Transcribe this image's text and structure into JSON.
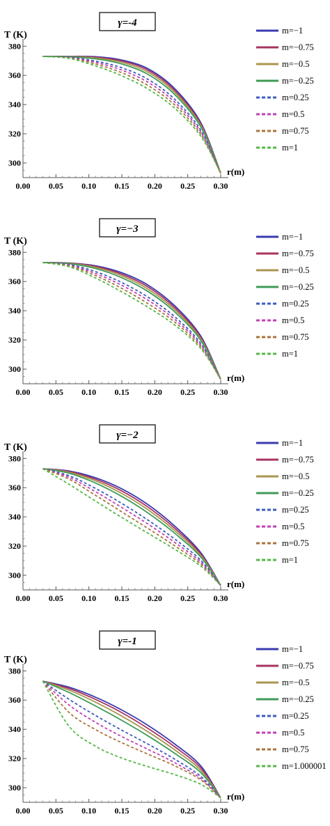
{
  "figure": {
    "colors": {
      "m=-1": "#3a3ab0",
      "m=-0.75": "#a8335f",
      "m=-0.5": "#a89650",
      "m=-0.25": "#3f9b57",
      "m=0.25": "#3b5bbf",
      "m=0.5": "#c040b8",
      "m=0.75": "#a8743a",
      "m=1": "#55b845"
    }
  },
  "chart_data": [
    {
      "type": "line",
      "title": "γ=-4",
      "xlabel": "r(m)",
      "ylabel": "T (K)",
      "xlim": [
        0.0,
        0.3
      ],
      "ylim": [
        290,
        380
      ],
      "xticks": [
        "0.00",
        "0.05",
        "0.10",
        "0.15",
        "0.20",
        "0.25",
        "0.30"
      ],
      "yticks": [
        "300",
        "320",
        "340",
        "360",
        "380"
      ],
      "legend_position": "right",
      "series": [
        {
          "name": "m=−1",
          "style": "solid",
          "color": "#3a3ab0",
          "x": [
            0.03,
            0.07,
            0.11,
            0.15,
            0.19,
            0.23,
            0.27,
            0.3
          ],
          "values": [
            373,
            373,
            372.8,
            370.5,
            364.5,
            351,
            327.5,
            293
          ]
        },
        {
          "name": "m=−0.75",
          "style": "solid",
          "color": "#a8335f",
          "x": [
            0.03,
            0.07,
            0.11,
            0.15,
            0.19,
            0.23,
            0.27,
            0.3
          ],
          "values": [
            373,
            372.9,
            372.4,
            369.8,
            363.4,
            349.8,
            326.5,
            293
          ]
        },
        {
          "name": "m=−0.5",
          "style": "solid",
          "color": "#a89650",
          "x": [
            0.03,
            0.07,
            0.11,
            0.15,
            0.19,
            0.23,
            0.27,
            0.3
          ],
          "values": [
            373,
            372.8,
            371.9,
            368.9,
            362.1,
            348.5,
            325.6,
            293
          ]
        },
        {
          "name": "m=−0.25",
          "style": "solid",
          "color": "#3f9b57",
          "x": [
            0.03,
            0.07,
            0.11,
            0.15,
            0.19,
            0.23,
            0.27,
            0.3
          ],
          "values": [
            373,
            372.7,
            371.3,
            367.8,
            360.6,
            347,
            324.6,
            293
          ]
        },
        {
          "name": "m=0.25",
          "style": "dashed",
          "color": "#3b5bbf",
          "x": [
            0.03,
            0.07,
            0.11,
            0.15,
            0.19,
            0.23,
            0.27,
            0.3
          ],
          "values": [
            373,
            372.4,
            369.8,
            365.2,
            357.2,
            343.7,
            322.3,
            293
          ]
        },
        {
          "name": "m=0.5",
          "style": "dashed",
          "color": "#c040b8",
          "x": [
            0.03,
            0.07,
            0.11,
            0.15,
            0.19,
            0.23,
            0.27,
            0.3
          ],
          "values": [
            373,
            372.2,
            368.9,
            363.6,
            355.2,
            341.8,
            321,
            293
          ]
        },
        {
          "name": "m=0.75",
          "style": "dashed",
          "color": "#a8743a",
          "x": [
            0.03,
            0.07,
            0.11,
            0.15,
            0.19,
            0.23,
            0.27,
            0.3
          ],
          "values": [
            373,
            371.9,
            367.8,
            361.8,
            353,
            339.8,
            319.6,
            293
          ]
        },
        {
          "name": "m=1",
          "style": "dashed",
          "color": "#55b845",
          "x": [
            0.03,
            0.07,
            0.11,
            0.15,
            0.19,
            0.23,
            0.27,
            0.3
          ],
          "values": [
            373,
            371.6,
            366.5,
            359.7,
            350.6,
            337.6,
            318.2,
            293
          ]
        }
      ]
    },
    {
      "type": "line",
      "title": "γ=−3",
      "xlabel": "r(m)",
      "ylabel": "T (K)",
      "xlim": [
        0.0,
        0.3
      ],
      "ylim": [
        290,
        380
      ],
      "xticks": [
        "0.00",
        "0.05",
        "0.10",
        "0.15",
        "0.20",
        "0.25",
        "0.30"
      ],
      "yticks": [
        "300",
        "320",
        "340",
        "360",
        "380"
      ],
      "legend_position": "right",
      "series": [
        {
          "name": "m=−1",
          "style": "solid",
          "color": "#3a3ab0",
          "x": [
            0.03,
            0.07,
            0.11,
            0.15,
            0.19,
            0.23,
            0.27,
            0.3
          ],
          "values": [
            373,
            372.7,
            370.8,
            366,
            357.5,
            343.5,
            322.5,
            293
          ]
        },
        {
          "name": "m=−0.75",
          "style": "solid",
          "color": "#a8335f",
          "x": [
            0.03,
            0.07,
            0.11,
            0.15,
            0.19,
            0.23,
            0.27,
            0.3
          ],
          "values": [
            373,
            372.6,
            370.3,
            365,
            356.2,
            342.2,
            321.6,
            293
          ]
        },
        {
          "name": "m=−0.5",
          "style": "solid",
          "color": "#a89650",
          "x": [
            0.03,
            0.07,
            0.11,
            0.15,
            0.19,
            0.23,
            0.27,
            0.3
          ],
          "values": [
            373,
            372.4,
            369.7,
            363.9,
            354.7,
            340.8,
            320.6,
            293
          ]
        },
        {
          "name": "m=−0.25",
          "style": "solid",
          "color": "#3f9b57",
          "x": [
            0.03,
            0.07,
            0.11,
            0.15,
            0.19,
            0.23,
            0.27,
            0.3
          ],
          "values": [
            373,
            372.2,
            368.9,
            362.6,
            353.1,
            339.3,
            319.6,
            293
          ]
        },
        {
          "name": "m=0.25",
          "style": "dashed",
          "color": "#3b5bbf",
          "x": [
            0.03,
            0.07,
            0.11,
            0.15,
            0.19,
            0.23,
            0.27,
            0.3
          ],
          "values": [
            373,
            371.6,
            366.8,
            359.3,
            349.2,
            336,
            317.5,
            293
          ]
        },
        {
          "name": "m=0.5",
          "style": "dashed",
          "color": "#c040b8",
          "x": [
            0.03,
            0.07,
            0.11,
            0.15,
            0.19,
            0.23,
            0.27,
            0.3
          ],
          "values": [
            373,
            371.2,
            365.5,
            357.4,
            347.1,
            334.2,
            316.4,
            293
          ]
        },
        {
          "name": "m=0.75",
          "style": "dashed",
          "color": "#a8743a",
          "x": [
            0.03,
            0.07,
            0.11,
            0.15,
            0.19,
            0.23,
            0.27,
            0.3
          ],
          "values": [
            373,
            370.7,
            364.1,
            355.3,
            344.8,
            332.3,
            315.2,
            293
          ]
        },
        {
          "name": "m=1",
          "style": "dashed",
          "color": "#55b845",
          "x": [
            0.03,
            0.07,
            0.11,
            0.15,
            0.19,
            0.23,
            0.27,
            0.3
          ],
          "values": [
            373,
            370.1,
            362.4,
            352.9,
            342.3,
            330.3,
            314,
            293
          ]
        }
      ]
    },
    {
      "type": "line",
      "title": "γ=−2",
      "xlabel": "r(m)",
      "ylabel": "T (K)",
      "xlim": [
        0.0,
        0.3
      ],
      "ylim": [
        290,
        380
      ],
      "xticks": [
        "0.00",
        "0.05",
        "0.10",
        "0.15",
        "0.20",
        "0.25",
        "0.30"
      ],
      "yticks": [
        "300",
        "320",
        "340",
        "360",
        "380"
      ],
      "legend_position": "right",
      "series": [
        {
          "name": "m=−1",
          "style": "solid",
          "color": "#3a3ab0",
          "x": [
            0.03,
            0.07,
            0.11,
            0.15,
            0.19,
            0.23,
            0.27,
            0.3
          ],
          "values": [
            373,
            371.4,
            366.8,
            359.2,
            348.3,
            333.8,
            315.4,
            293
          ]
        },
        {
          "name": "m=−0.75",
          "style": "solid",
          "color": "#a8335f",
          "x": [
            0.03,
            0.07,
            0.11,
            0.15,
            0.19,
            0.23,
            0.27,
            0.3
          ],
          "values": [
            373,
            371,
            365.8,
            357.7,
            346.6,
            332.3,
            314.5,
            293
          ]
        },
        {
          "name": "m=−0.5",
          "style": "solid",
          "color": "#a89650",
          "x": [
            0.03,
            0.07,
            0.11,
            0.15,
            0.19,
            0.23,
            0.27,
            0.3
          ],
          "values": [
            373,
            370.5,
            364.7,
            356,
            344.8,
            330.7,
            313.5,
            293
          ]
        },
        {
          "name": "m=−0.25",
          "style": "solid",
          "color": "#3f9b57",
          "x": [
            0.03,
            0.07,
            0.11,
            0.15,
            0.19,
            0.23,
            0.27,
            0.3
          ],
          "values": [
            373,
            369.9,
            363.2,
            354,
            342.6,
            328.9,
            312.4,
            293
          ]
        },
        {
          "name": "m=0.25",
          "style": "dashed",
          "color": "#3b5bbf",
          "x": [
            0.03,
            0.07,
            0.11,
            0.15,
            0.19,
            0.23,
            0.27,
            0.3
          ],
          "values": [
            373,
            368.2,
            359.5,
            349.2,
            337.7,
            324.9,
            310.2,
            293
          ]
        },
        {
          "name": "m=0.5",
          "style": "dashed",
          "color": "#c040b8",
          "x": [
            0.03,
            0.07,
            0.11,
            0.15,
            0.19,
            0.23,
            0.27,
            0.3
          ],
          "values": [
            373,
            367.1,
            357.3,
            346.4,
            335,
            322.6,
            308.9,
            293
          ]
        },
        {
          "name": "m=0.75",
          "style": "dashed",
          "color": "#a8743a",
          "x": [
            0.03,
            0.07,
            0.11,
            0.15,
            0.19,
            0.23,
            0.27,
            0.3
          ],
          "values": [
            373,
            365.8,
            354.8,
            343.4,
            332,
            320.3,
            307.6,
            293
          ]
        },
        {
          "name": "m=1",
          "style": "dashed",
          "color": "#55b845",
          "x": [
            0.03,
            0.07,
            0.11,
            0.15,
            0.19,
            0.23,
            0.27,
            0.3
          ],
          "values": [
            373,
            362.3,
            350.8,
            339.6,
            328.7,
            317.9,
            306.2,
            293
          ]
        }
      ]
    },
    {
      "type": "line",
      "title": "γ=-1",
      "xlabel": "r(m)",
      "ylabel": "T (K)",
      "xlim": [
        0.0,
        0.3
      ],
      "ylim": [
        290,
        380
      ],
      "xticks": [
        "0.00",
        "0.05",
        "0.10",
        "0.15",
        "0.20",
        "0.25",
        "0.30"
      ],
      "yticks": [
        "300",
        "320",
        "340",
        "360",
        "380"
      ],
      "legend_position": "right",
      "series": [
        {
          "name": "m=−1",
          "style": "solid",
          "color": "#3a3ab0",
          "x": [
            0.03,
            0.07,
            0.11,
            0.15,
            0.19,
            0.23,
            0.27,
            0.3
          ],
          "values": [
            373,
            368.8,
            362,
            353.2,
            342.6,
            330,
            314.8,
            293
          ]
        },
        {
          "name": "m=−0.75",
          "style": "solid",
          "color": "#a8335f",
          "x": [
            0.03,
            0.07,
            0.11,
            0.15,
            0.19,
            0.23,
            0.27,
            0.3
          ],
          "values": [
            373,
            367.9,
            360.5,
            351.4,
            340.5,
            328.1,
            313.4,
            293
          ]
        },
        {
          "name": "m=−0.5",
          "style": "solid",
          "color": "#a89650",
          "x": [
            0.03,
            0.07,
            0.11,
            0.15,
            0.19,
            0.23,
            0.27,
            0.3
          ],
          "values": [
            373,
            366.8,
            358.6,
            349,
            338.2,
            326,
            311.9,
            293
          ]
        },
        {
          "name": "m=−0.25",
          "style": "solid",
          "color": "#3f9b57",
          "x": [
            0.03,
            0.07,
            0.11,
            0.15,
            0.19,
            0.23,
            0.27,
            0.3
          ],
          "values": [
            373,
            365.2,
            356,
            346.1,
            335.4,
            323.6,
            310.3,
            293
          ]
        },
        {
          "name": "m=0.25",
          "style": "dashed",
          "color": "#3b5bbf",
          "x": [
            0.03,
            0.07,
            0.11,
            0.15,
            0.19,
            0.23,
            0.27,
            0.3
          ],
          "values": [
            373,
            360.5,
            349.5,
            339.4,
            329.8,
            319.6,
            307.7,
            293
          ]
        },
        {
          "name": "m=0.5",
          "style": "dashed",
          "color": "#c040b8",
          "x": [
            0.03,
            0.07,
            0.11,
            0.15,
            0.19,
            0.23,
            0.27,
            0.3
          ],
          "values": [
            373,
            356.6,
            344.8,
            335,
            326.2,
            317.2,
            306.3,
            293
          ]
        },
        {
          "name": "m=0.75",
          "style": "dashed",
          "color": "#a8743a",
          "x": [
            0.03,
            0.07,
            0.11,
            0.15,
            0.19,
            0.23,
            0.27,
            0.3
          ],
          "values": [
            373,
            351.5,
            339.8,
            330.8,
            322.9,
            315.1,
            305.3,
            293
          ]
        },
        {
          "name": "m=1.000001",
          "style": "dashed",
          "color": "#55b845",
          "x": [
            0.03,
            0.07,
            0.11,
            0.15,
            0.19,
            0.23,
            0.27,
            0.3
          ],
          "values": [
            373,
            342,
            328.4,
            320.3,
            314.4,
            309,
            302.3,
            293
          ]
        }
      ]
    }
  ]
}
